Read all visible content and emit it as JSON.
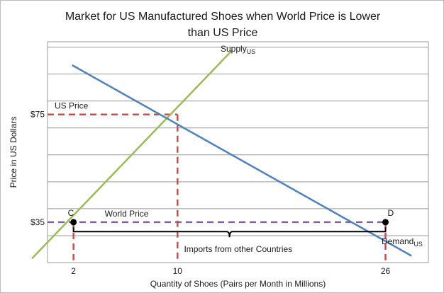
{
  "chart_data": {
    "type": "line",
    "title_lines": [
      "Market for US Manufactured Shoes when World Price is Lower",
      "than US Price"
    ],
    "xlabel": "Quantity of Shoes (Pairs per Month in Millions)",
    "ylabel": "Price in US Dollars",
    "xlim": [
      0,
      29.3
    ],
    "ylim": [
      20,
      102
    ],
    "x_ticks": [
      2,
      10,
      26
    ],
    "y_ticks": [
      {
        "value": 35,
        "label": "$35"
      },
      {
        "value": 75,
        "label": "$75"
      }
    ],
    "grid": "horizontal",
    "series": [
      {
        "name": "Supply",
        "subscript": "US",
        "color": "#9bbb59",
        "points": [
          [
            -1.2,
            21.5
          ],
          [
            14.2,
            98.8
          ]
        ]
      },
      {
        "name": "Demand",
        "subscript": "US",
        "color": "#4f81bd",
        "points": [
          [
            1.9,
            93.3
          ],
          [
            28.0,
            22.5
          ]
        ]
      }
    ],
    "reference_lines": [
      {
        "label": "US Price",
        "color": "#c0504d",
        "value": 75,
        "x_end": 10
      },
      {
        "label": "World Price",
        "color": "#8064a2",
        "value": 35,
        "x_end": 26
      }
    ],
    "points": [
      {
        "label": "C",
        "x": 2,
        "y": 35
      },
      {
        "label": "D",
        "x": 26,
        "y": 35
      }
    ],
    "bracket": {
      "label": "Imports from other Countries",
      "x_start": 2,
      "x_end": 26,
      "y": 31.5
    }
  }
}
